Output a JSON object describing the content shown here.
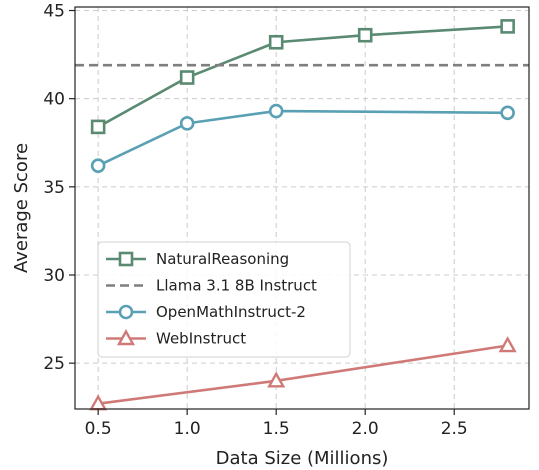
{
  "chart_data": {
    "type": "line",
    "xlabel": "Data Size (Millions)",
    "ylabel": "Average Score",
    "xlim": [
      0.37,
      2.92
    ],
    "ylim": [
      22.4,
      45.2
    ],
    "xticks": [
      0.5,
      1.0,
      1.5,
      2.0,
      2.5
    ],
    "xtick_labels": [
      "0.5",
      "1.0",
      "1.5",
      "2.0",
      "2.5"
    ],
    "yticks": [
      25,
      30,
      35,
      40,
      45
    ],
    "ytick_labels": [
      "25",
      "30",
      "35",
      "40",
      "45"
    ],
    "grid": true,
    "legend_position": "lower-left",
    "series": [
      {
        "name": "NaturalReasoning",
        "color": "#5a8a72",
        "marker": "square",
        "x": [
          0.5,
          1.0,
          1.5,
          2.0,
          2.8
        ],
        "y": [
          38.4,
          41.2,
          43.2,
          43.6,
          44.1
        ]
      },
      {
        "name": "Llama 3.1 8B Instruct",
        "color": "#7f7f7f",
        "marker": "none",
        "line": "dashed",
        "y_constant": 41.9
      },
      {
        "name": "OpenMathInstruct-2",
        "color": "#5aa0b4",
        "marker": "circle",
        "x": [
          0.5,
          1.0,
          1.5,
          2.8
        ],
        "y": [
          36.2,
          38.6,
          39.3,
          39.2
        ]
      },
      {
        "name": "WebInstruct",
        "color": "#d07a78",
        "marker": "triangle",
        "x": [
          0.5,
          1.5,
          2.8
        ],
        "y": [
          22.7,
          24.0,
          26.0
        ]
      }
    ]
  }
}
